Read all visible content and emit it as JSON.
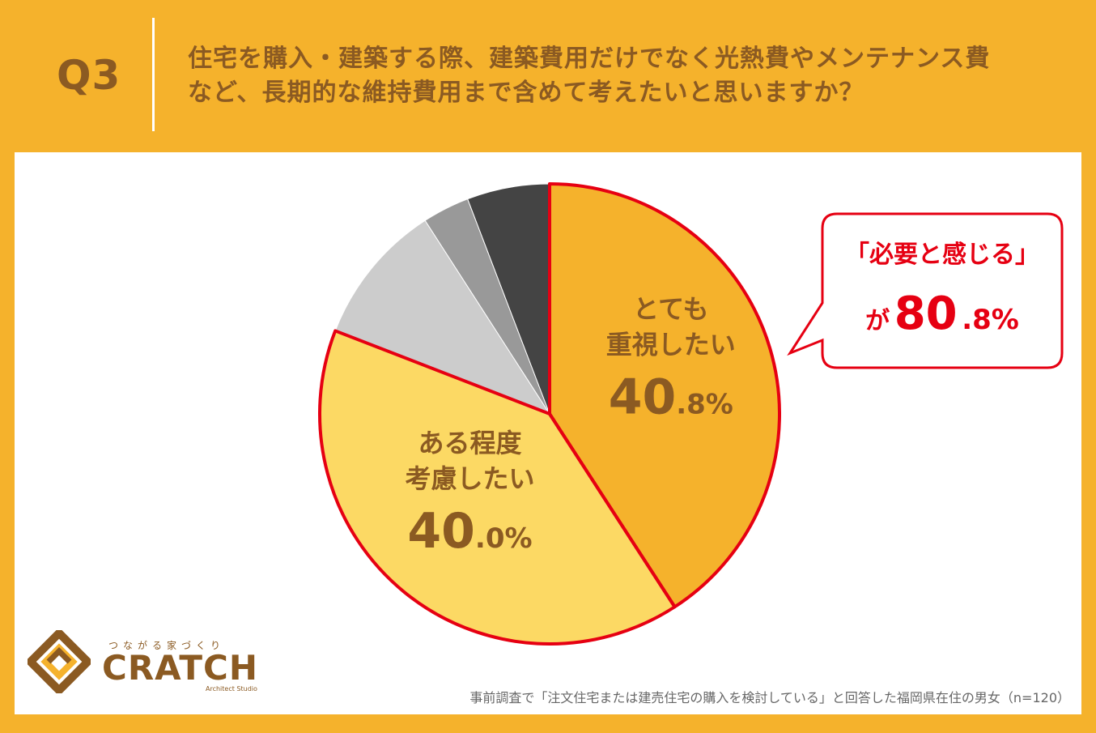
{
  "question": {
    "label": "Q3",
    "line1": "住宅を購入・建築する際、建築費用だけでなく光熱費やメンテナンス費",
    "line2": "など、長期的な維持費用まで含めて考えたいと思いますか？"
  },
  "chart_data": {
    "type": "pie",
    "start": "12 o'clock",
    "direction": "clockwise",
    "slices": [
      {
        "label_line1": "とても",
        "label_line2": "重視したい",
        "value_int": "40",
        "value_dec": ".8%",
        "value": 40.8,
        "color": "#F5B22C"
      },
      {
        "label_line1": "ある程度",
        "label_line2": "考慮したい",
        "value_int": "40",
        "value_dec": ".0%",
        "value": 40.0,
        "color": "#FCD964"
      },
      {
        "label_line1": "",
        "label_line2": "",
        "value_int": "",
        "value_dec": "",
        "value": 10.0,
        "color": "#CCCCCC"
      },
      {
        "label_line1": "",
        "label_line2": "",
        "value_int": "",
        "value_dec": "",
        "value": 3.3,
        "color": "#999999"
      },
      {
        "label_line1": "",
        "label_line2": "",
        "value_int": "",
        "value_dec": "",
        "value": 5.8,
        "color": "#444444"
      }
    ],
    "highlight_color": "#E60012"
  },
  "callout": {
    "line1": "「必要と感じる」",
    "prefix": "が",
    "value_int": "80",
    "value_dec": ".8%"
  },
  "footnote": "事前調査で「注文住宅または建売住宅の購入を検討している」と回答した福岡県在住の男女（n=120）",
  "logo": {
    "tagline": "つながる家づくり",
    "name": "CRATCH",
    "sub": "Architect Studio"
  }
}
